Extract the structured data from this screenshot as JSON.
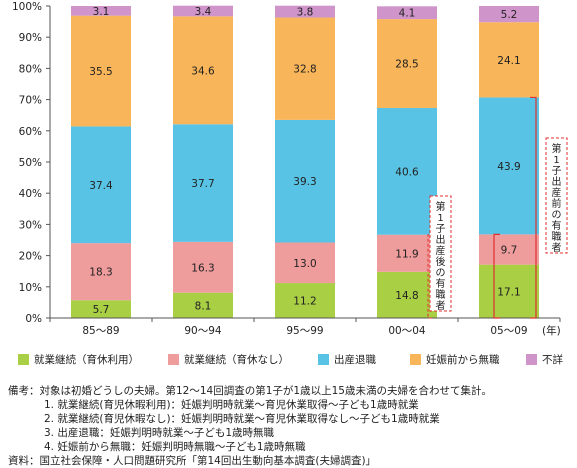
{
  "chart_data": {
    "type": "stacked-bar",
    "categories": [
      "85～89",
      "90～94",
      "95～99",
      "00～04",
      "05～09"
    ],
    "x_unit": "(年)",
    "ylim": [
      0,
      100
    ],
    "y_ticks": [
      "0%",
      "10%",
      "20%",
      "30%",
      "40%",
      "50%",
      "60%",
      "70%",
      "80%",
      "90%",
      "100%"
    ],
    "series": [
      {
        "name": "就業継続（育休利用）",
        "color": "#a9cf45",
        "values": [
          5.7,
          8.1,
          11.2,
          14.8,
          17.1
        ]
      },
      {
        "name": "就業継続（育休なし）",
        "color": "#ef9c9d",
        "values": [
          18.3,
          16.3,
          13.0,
          11.9,
          9.7
        ]
      },
      {
        "name": "出産退職",
        "color": "#58c3e5",
        "values": [
          37.4,
          37.7,
          39.3,
          40.6,
          43.9
        ]
      },
      {
        "name": "妊娠前から無職",
        "color": "#f8b559",
        "values": [
          35.5,
          34.6,
          32.8,
          28.5,
          24.1
        ]
      },
      {
        "name": "不詳",
        "color": "#cf94c9",
        "values": [
          3.1,
          3.4,
          3.8,
          4.1,
          5.2
        ]
      }
    ],
    "value_labels": [
      [
        "5.7",
        "8.1",
        "11.2",
        "14.8",
        "17.1"
      ],
      [
        "18.3",
        "16.3",
        "13.0",
        "11.9",
        "9.7"
      ],
      [
        "37.4",
        "37.7",
        "39.3",
        "40.6",
        "43.9"
      ],
      [
        "35.5",
        "34.6",
        "32.8",
        "28.5",
        "24.1"
      ],
      [
        "3.1",
        "3.4",
        "3.8",
        "4.1",
        "5.2"
      ]
    ],
    "annotations": [
      {
        "text": "第1子出産後の有職者",
        "category": "00～04",
        "range": [
          0,
          26.7
        ],
        "style": "dashed-box"
      },
      {
        "text": "第1子出産前の有職者",
        "category": "05～09",
        "range": [
          0,
          70.7
        ],
        "style": "brackets"
      }
    ],
    "grid": false,
    "legend_position": "bottom"
  },
  "notes": {
    "lines": [
      "備考：対象は初婚どうしの夫婦。第12～14回調査の第1子が1歳以上15歳未満の夫婦を合わせて集計。",
      "1. 就業継続(育児休暇利用)：妊娠判明時就業～育児休業取得～子ども1歳時就業",
      "2. 就業継続(育児休暇なし)：妊娠判明時就業～育児休業取得なし～子ども1歳時就業",
      "3. 出産退職：妊娠判明時就業～子ども1歳時無職",
      "4. 妊娠前から無職：妊娠判明時無職～子ども1歳時無職",
      "資料：国立社会保障・人口問題研究所「第14回出生動向基本調査(夫婦調査)」"
    ]
  },
  "colors": {
    "axis": "#555555",
    "bracket": "#e03030",
    "annotation_box": "#e03030"
  }
}
